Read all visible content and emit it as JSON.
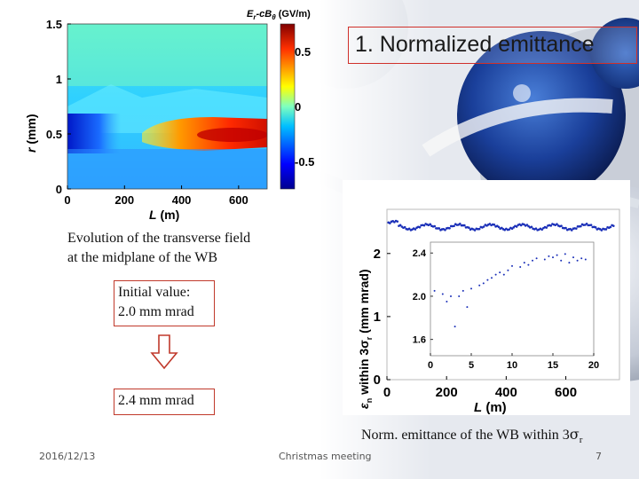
{
  "slide": {
    "title": "1.  Normalized emittance",
    "caption_top_line1": "Evolution of the transverse field",
    "caption_top_line2": "at the midplane of the WB",
    "initial_label_line1": "Initial value:",
    "initial_label_line2": "2.0 mm mrad",
    "final_label": "2.4 mm mrad",
    "caption_bottom_prefix": "Norm. emittance of the WB within 3",
    "caption_bottom_sigma": "σ",
    "caption_bottom_sub": "r",
    "footer_date": "2016/12/13",
    "footer_center": "Christmas meeting",
    "footer_page": "7"
  },
  "colors": {
    "title_border": "#d0302a",
    "box_border": "#c0392b",
    "series": "#1a2fb8"
  },
  "chart_data": [
    {
      "type": "heatmap",
      "title": "Er-cBθ (GV/m)",
      "colorbar_label_main": "E",
      "colorbar_label_sub1": "r",
      "colorbar_label_mid": "-cB",
      "colorbar_label_sub2": "θ",
      "colorbar_label_unit": " (GV/m)",
      "xlabel_var": "L",
      "xlabel_unit": " (m)",
      "ylabel_var": "r",
      "ylabel_unit": " (mm)",
      "xlim": [
        0,
        700
      ],
      "ylim": [
        0,
        1.5
      ],
      "x_ticks": [
        "0",
        "200",
        "400",
        "600"
      ],
      "y_ticks": [
        "0",
        "0.5",
        "1",
        "1.5"
      ],
      "colorbar_ticks": [
        "0.5",
        "0",
        "-0.5"
      ],
      "colorbar_range": [
        -0.75,
        0.75
      ]
    },
    {
      "type": "scatter",
      "xlabel_var": "L",
      "xlabel_unit": " (m)",
      "ylabel": "εn within 3σr (mm mrad)",
      "xlim": [
        0,
        780
      ],
      "ylim": [
        0,
        2.7
      ],
      "x_ticks": [
        "0",
        "200",
        "400",
        "600"
      ],
      "y_ticks": [
        "0",
        "1",
        "2"
      ],
      "series": [
        {
          "name": "emittance",
          "baseline": 2.42,
          "amplitude": 0.04
        }
      ],
      "inset": {
        "type": "scatter",
        "xlim": [
          0,
          20
        ],
        "ylim": [
          1.45,
          2.5
        ],
        "x_ticks": [
          "0",
          "5",
          "10",
          "15",
          "20"
        ],
        "y_ticks": [
          "1.6",
          "2.0",
          "2.4"
        ],
        "x": [
          0.5,
          1.5,
          2,
          2.5,
          3,
          3.5,
          4,
          4.5,
          5,
          6,
          6.5,
          7,
          7.5,
          8,
          8.5,
          9,
          9.5,
          10,
          11,
          11.5,
          12,
          12.5,
          13,
          14,
          14.5,
          15,
          15.5,
          16,
          16.5,
          17,
          17.5,
          18,
          18.5,
          19
        ],
        "y": [
          2.05,
          2.02,
          1.95,
          2.0,
          1.72,
          2.0,
          2.05,
          1.9,
          2.07,
          2.1,
          2.12,
          2.15,
          2.17,
          2.2,
          2.22,
          2.2,
          2.24,
          2.28,
          2.27,
          2.31,
          2.29,
          2.33,
          2.35,
          2.34,
          2.37,
          2.36,
          2.38,
          2.33,
          2.39,
          2.31,
          2.36,
          2.33,
          2.35,
          2.34
        ]
      }
    }
  ]
}
